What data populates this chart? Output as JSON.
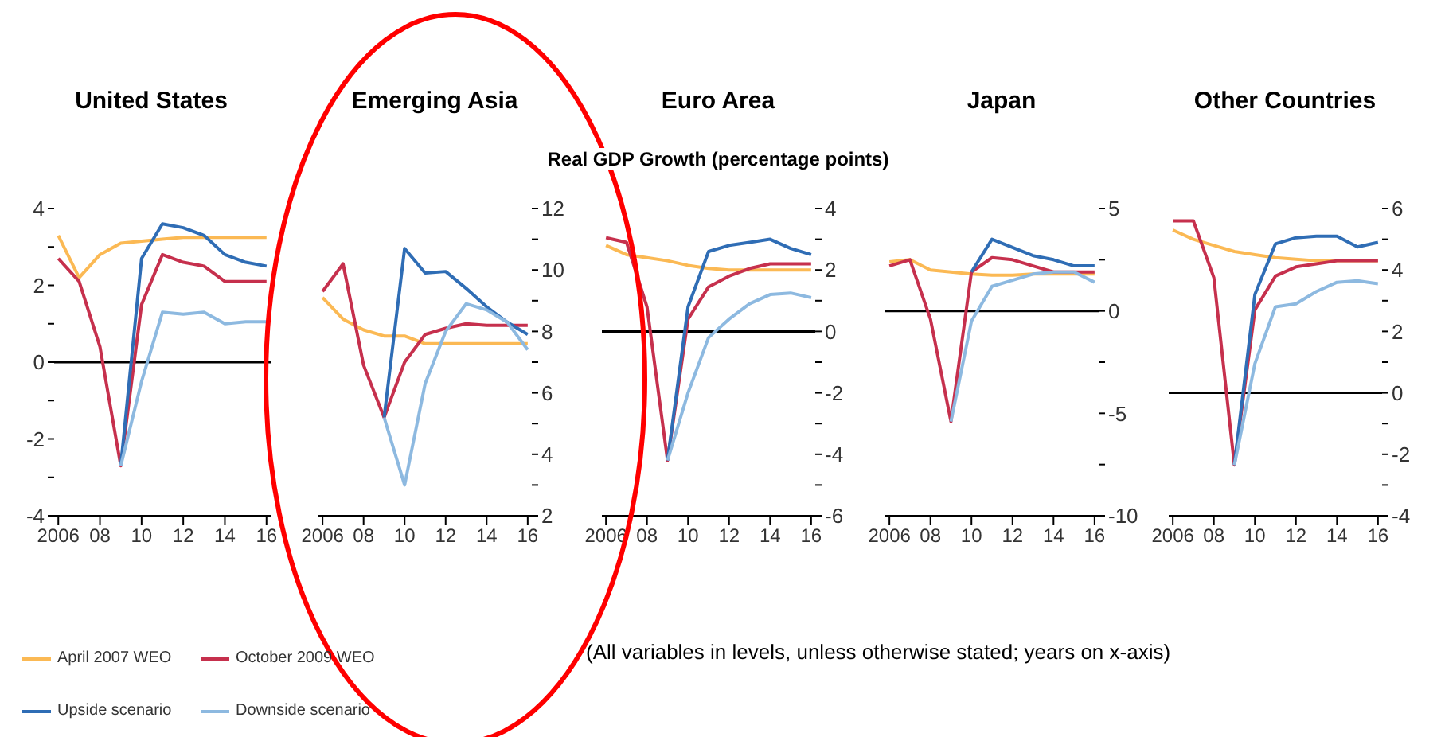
{
  "chart_data": [
    {
      "type": "line",
      "title": "United States",
      "x": [
        2006,
        2007,
        2008,
        2009,
        2010,
        2011,
        2012,
        2013,
        2014,
        2015,
        2016
      ],
      "xlim": [
        2005.8,
        2016.2
      ],
      "xticks": [
        {
          "value": 2006,
          "label": "2006"
        },
        {
          "value": 2008,
          "label": "08"
        },
        {
          "value": 2010,
          "label": "10"
        },
        {
          "value": 2012,
          "label": "12"
        },
        {
          "value": 2014,
          "label": "14"
        },
        {
          "value": 2016,
          "label": "16"
        }
      ],
      "ylim": [
        -4,
        4
      ],
      "yticks": [
        -4,
        {
          "value": -3,
          "label": null
        },
        -2,
        {
          "value": -1,
          "label": null
        },
        0,
        {
          "value": 1,
          "label": null
        },
        2,
        {
          "value": 3,
          "label": null
        },
        4
      ],
      "legend": "bottom",
      "marker": "none",
      "ref_lines": [
        {
          "axis": "y",
          "value": 0,
          "color": "#000000"
        }
      ],
      "annotations": [
        "(All variables in levels, unless otherwise stated; years on x-axis)"
      ],
      "series": [
        {
          "name": "April 2007 WEO",
          "color": "#fbb954",
          "values": [
            3.3,
            2.2,
            2.8,
            3.1,
            3.15,
            3.2,
            3.25,
            3.25,
            3.25,
            3.25,
            3.25
          ]
        },
        {
          "name": "October 2009 WEO",
          "color": "#c6304d",
          "values": [
            2.7,
            2.1,
            0.4,
            -2.7,
            1.5,
            2.8,
            2.6,
            2.5,
            2.1,
            2.1,
            2.1
          ]
        },
        {
          "name": "Upside scenario",
          "color": "#2f6db5",
          "values": [
            null,
            null,
            null,
            -2.7,
            2.7,
            3.6,
            3.5,
            3.3,
            2.8,
            2.6,
            2.5
          ]
        },
        {
          "name": "Downside scenario",
          "color": "#8db9e0",
          "values": [
            null,
            null,
            null,
            -2.7,
            -0.5,
            1.3,
            1.25,
            1.3,
            1.0,
            1.05,
            1.05
          ]
        }
      ]
    },
    {
      "type": "line",
      "title": "Emerging Asia",
      "x": [
        2006,
        2007,
        2008,
        2009,
        2010,
        2011,
        2012,
        2013,
        2014,
        2015,
        2016
      ],
      "xlim": [
        2005.8,
        2016.2
      ],
      "xticks": [
        {
          "value": 2006,
          "label": "2006"
        },
        {
          "value": 2008,
          "label": "08"
        },
        {
          "value": 2010,
          "label": "10"
        },
        {
          "value": 2012,
          "label": "12"
        },
        {
          "value": 2014,
          "label": "14"
        },
        {
          "value": 2016,
          "label": "16"
        }
      ],
      "ylim": [
        2,
        12
      ],
      "yticks": [
        2,
        {
          "value": 3,
          "label": null
        },
        4,
        {
          "value": 5,
          "label": null
        },
        6,
        {
          "value": 7,
          "label": null
        },
        8,
        {
          "value": 9,
          "label": null
        },
        10,
        {
          "value": 11,
          "label": null
        },
        12
      ],
      "marker": "none",
      "series": [
        {
          "color": "#fbb954",
          "values": [
            9.1,
            8.4,
            8.05,
            7.85,
            7.85,
            7.6,
            7.6,
            7.6,
            7.6,
            7.6,
            7.6
          ]
        },
        {
          "color": "#c6304d",
          "values": [
            9.3,
            10.2,
            6.9,
            5.2,
            7.0,
            7.9,
            8.1,
            8.25,
            8.2,
            8.2,
            8.2
          ]
        },
        {
          "color": "#2f6db5",
          "values": [
            null,
            null,
            null,
            5.2,
            10.7,
            9.9,
            9.95,
            9.4,
            8.8,
            8.3,
            7.9
          ]
        },
        {
          "color": "#8db9e0",
          "values": [
            null,
            null,
            null,
            5.2,
            3.0,
            6.3,
            8.0,
            8.9,
            8.7,
            8.3,
            7.4
          ]
        }
      ]
    },
    {
      "type": "line",
      "title": "Euro Area",
      "subtitle": "Real GDP Growth (percentage points)",
      "x": [
        2006,
        2007,
        2008,
        2009,
        2010,
        2011,
        2012,
        2013,
        2014,
        2015,
        2016
      ],
      "xlim": [
        2005.8,
        2016.2
      ],
      "xticks": [
        {
          "value": 2006,
          "label": "2006"
        },
        {
          "value": 2008,
          "label": "08"
        },
        {
          "value": 2010,
          "label": "10"
        },
        {
          "value": 2012,
          "label": "12"
        },
        {
          "value": 2014,
          "label": "14"
        },
        {
          "value": 2016,
          "label": "16"
        }
      ],
      "ylim": [
        -6,
        4
      ],
      "yticks": [
        -6,
        {
          "value": -5,
          "label": null
        },
        -4,
        {
          "value": -3,
          "label": null
        },
        -2,
        {
          "value": -1,
          "label": null
        },
        0,
        {
          "value": 1,
          "label": null
        },
        2,
        {
          "value": 3,
          "label": null
        },
        4
      ],
      "marker": "none",
      "ref_lines": [
        {
          "axis": "y",
          "value": 0,
          "color": "#000000"
        }
      ],
      "series": [
        {
          "color": "#fbb954",
          "values": [
            2.8,
            2.5,
            2.4,
            2.3,
            2.15,
            2.05,
            2.0,
            2.0,
            2.0,
            2.0,
            2.0
          ]
        },
        {
          "color": "#c6304d",
          "values": [
            3.05,
            2.9,
            0.8,
            -4.2,
            0.4,
            1.45,
            1.8,
            2.05,
            2.2,
            2.2,
            2.2
          ]
        },
        {
          "color": "#2f6db5",
          "values": [
            null,
            null,
            null,
            -4.2,
            0.8,
            2.6,
            2.8,
            2.9,
            3.0,
            2.7,
            2.5
          ]
        },
        {
          "color": "#8db9e0",
          "values": [
            null,
            null,
            null,
            -4.2,
            -2.0,
            -0.2,
            0.4,
            0.9,
            1.2,
            1.25,
            1.1
          ]
        }
      ]
    },
    {
      "type": "line",
      "title": "Japan",
      "x": [
        2006,
        2007,
        2008,
        2009,
        2010,
        2011,
        2012,
        2013,
        2014,
        2015,
        2016
      ],
      "xlim": [
        2005.8,
        2016.2
      ],
      "xticks": [
        {
          "value": 2006,
          "label": "2006"
        },
        {
          "value": 2008,
          "label": "08"
        },
        {
          "value": 2010,
          "label": "10"
        },
        {
          "value": 2012,
          "label": "12"
        },
        {
          "value": 2014,
          "label": "14"
        },
        {
          "value": 2016,
          "label": "16"
        }
      ],
      "ylim": [
        -10,
        5
      ],
      "yticks": [
        -10,
        {
          "value": -7.5,
          "label": null
        },
        -5,
        {
          "value": -2.5,
          "label": null
        },
        0,
        {
          "value": 2.5,
          "label": null
        },
        5
      ],
      "marker": "none",
      "ref_lines": [
        {
          "axis": "y",
          "value": 0,
          "color": "#000000"
        }
      ],
      "series": [
        {
          "color": "#fbb954",
          "values": [
            2.4,
            2.5,
            2.0,
            1.9,
            1.8,
            1.75,
            1.75,
            1.8,
            1.8,
            1.8,
            1.8
          ]
        },
        {
          "color": "#c6304d",
          "values": [
            2.2,
            2.5,
            -0.4,
            -5.4,
            1.9,
            2.6,
            2.5,
            2.2,
            1.9,
            1.9,
            1.9
          ]
        },
        {
          "color": "#2f6db5",
          "values": [
            null,
            null,
            null,
            null,
            1.9,
            3.5,
            3.1,
            2.7,
            2.5,
            2.2,
            2.2
          ]
        },
        {
          "color": "#8db9e0",
          "values": [
            null,
            null,
            null,
            -5.4,
            -0.5,
            1.2,
            1.5,
            1.8,
            1.9,
            1.9,
            1.4
          ]
        }
      ]
    },
    {
      "type": "line",
      "title": "Other Countries",
      "x": [
        2006,
        2007,
        2008,
        2009,
        2010,
        2011,
        2012,
        2013,
        2014,
        2015,
        2016
      ],
      "xlim": [
        2005.8,
        2016.2
      ],
      "xticks": [
        {
          "value": 2006,
          "label": "2006"
        },
        {
          "value": 2008,
          "label": "08"
        },
        {
          "value": 2010,
          "label": "10"
        },
        {
          "value": 2012,
          "label": "12"
        },
        {
          "value": 2014,
          "label": "14"
        },
        {
          "value": 2016,
          "label": "16"
        }
      ],
      "ylim": [
        -4,
        6
      ],
      "yticks": [
        -4,
        {
          "value": -3,
          "label": null
        },
        -2,
        {
          "value": -1,
          "label": null
        },
        0,
        {
          "value": 1,
          "label": null
        },
        2,
        {
          "value": 3,
          "label": null
        },
        4,
        {
          "value": 5,
          "label": null
        },
        6
      ],
      "marker": "none",
      "ref_lines": [
        {
          "axis": "y",
          "value": 0,
          "color": "#000000"
        }
      ],
      "series": [
        {
          "color": "#fbb954",
          "values": [
            5.3,
            5.0,
            4.8,
            4.6,
            4.5,
            4.4,
            4.35,
            4.3,
            4.3,
            4.3,
            4.3
          ]
        },
        {
          "color": "#c6304d",
          "values": [
            5.6,
            5.6,
            3.75,
            -2.35,
            2.7,
            3.8,
            4.1,
            4.2,
            4.3,
            4.3,
            4.3
          ]
        },
        {
          "color": "#2f6db5",
          "values": [
            null,
            null,
            null,
            -2.35,
            3.2,
            4.85,
            5.05,
            5.1,
            5.1,
            4.75,
            4.9
          ]
        },
        {
          "color": "#8db9e0",
          "values": [
            null,
            null,
            null,
            -2.35,
            0.95,
            2.8,
            2.9,
            3.3,
            3.6,
            3.65,
            3.55
          ]
        }
      ]
    }
  ]
}
